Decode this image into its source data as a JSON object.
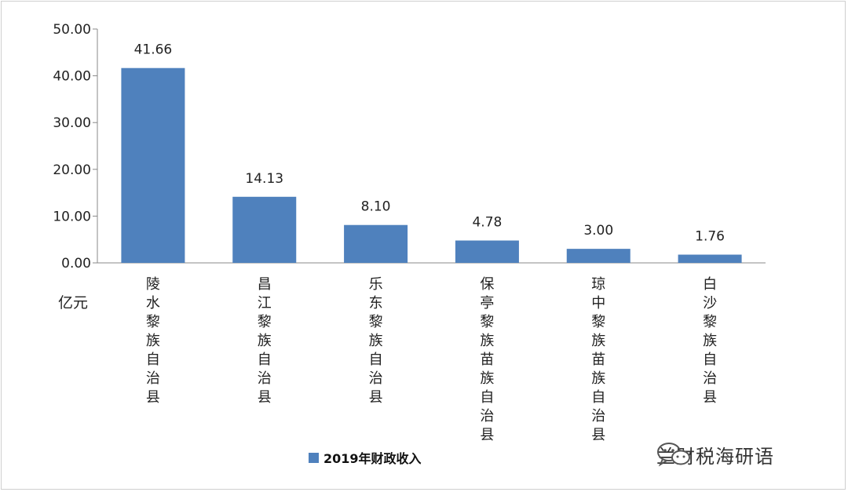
{
  "chart_data": {
    "type": "bar",
    "categories": [
      "陵水黎族自治县",
      "昌江黎族自治县",
      "乐东黎族自治县",
      "保亭黎族苗族自治县",
      "琼中黎族苗族自治县",
      "白沙黎族自治县"
    ],
    "series": [
      {
        "name": "2019年财政收入",
        "values": [
          41.66,
          14.13,
          8.1,
          4.78,
          3.0,
          1.76
        ]
      }
    ],
    "value_labels": [
      "41.66",
      "14.13",
      "8.10",
      "4.78",
      "3.00",
      "1.76"
    ],
    "y_ticks": [
      0,
      10,
      20,
      30,
      40,
      50
    ],
    "y_tick_labels": [
      "0.00",
      "10.00",
      "20.00",
      "30.00",
      "40.00",
      "50.00"
    ],
    "ylim": [
      0,
      50
    ],
    "unit": "亿元",
    "grid": false,
    "legend_position": "bottom",
    "bar_color": "#4f81bd"
  },
  "watermark": {
    "text": "兰财税海研语",
    "icon": "wechat-icon"
  }
}
